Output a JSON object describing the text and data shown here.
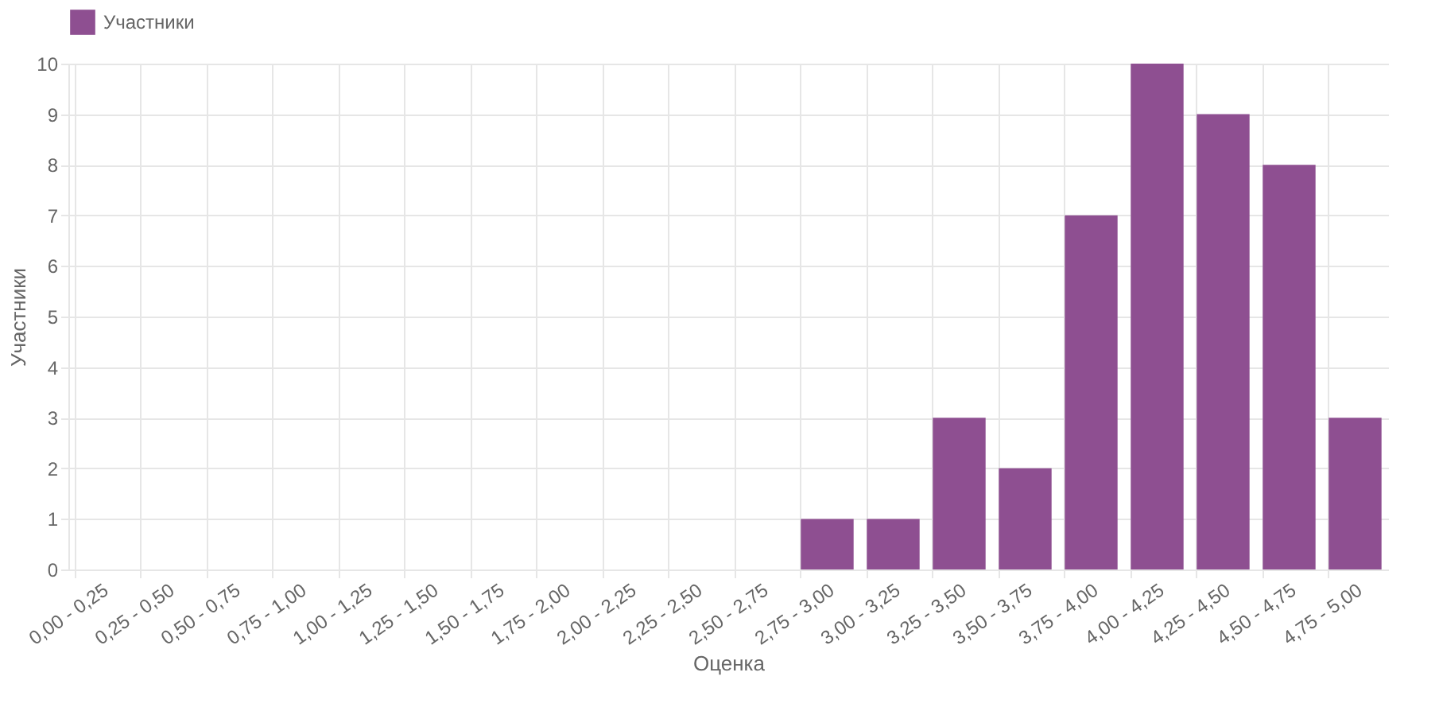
{
  "chart_data": {
    "type": "bar",
    "xlabel": "Оценка",
    "ylabel": "Участники",
    "categories": [
      "0,00 - 0,25",
      "0,25 - 0,50",
      "0,50 - 0,75",
      "0,75 - 1,00",
      "1,00 - 1,25",
      "1,25 - 1,50",
      "1,50 - 1,75",
      "1,75 - 2,00",
      "2,00 - 2,25",
      "2,25 - 2,50",
      "2,50 - 2,75",
      "2,75 - 3,00",
      "3,00 - 3,25",
      "3,25 - 3,50",
      "3,50 - 3,75",
      "3,75 - 4,00",
      "4,00 - 4,25",
      "4,25 - 4,50",
      "4,50 - 4,75",
      "4,75 - 5,00"
    ],
    "series": [
      {
        "name": "Участники",
        "color": "#8e4f91",
        "values": [
          0,
          0,
          0,
          0,
          0,
          0,
          0,
          0,
          0,
          0,
          0,
          1,
          1,
          3,
          2,
          7,
          10,
          9,
          8,
          3
        ]
      }
    ],
    "ylim": [
      0,
      10
    ],
    "yticks": [
      0,
      1,
      2,
      3,
      4,
      5,
      6,
      7,
      8,
      9,
      10
    ],
    "grid": true,
    "legend": "top"
  }
}
